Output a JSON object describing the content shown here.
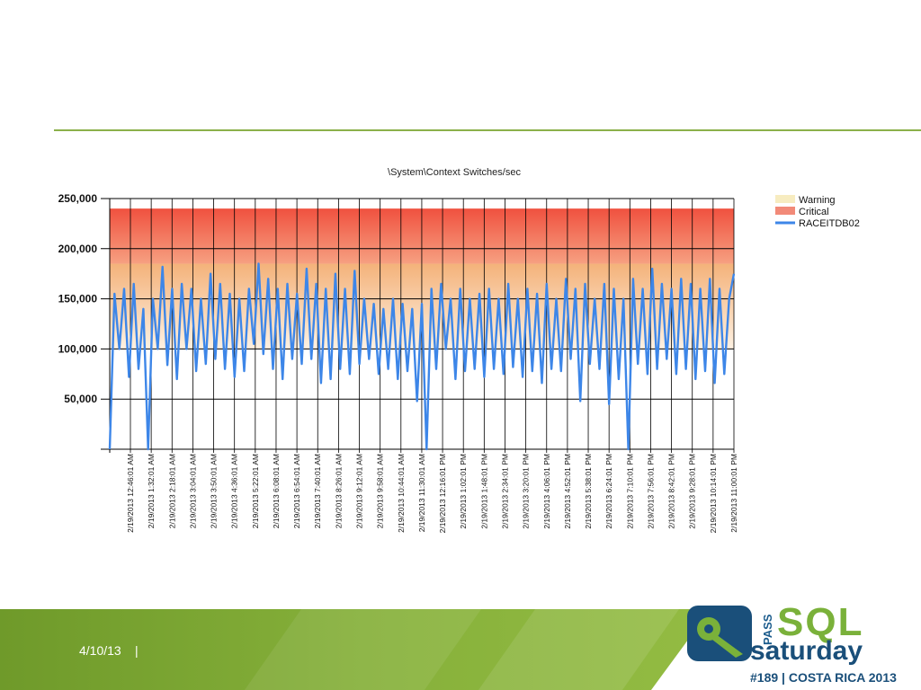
{
  "footer": {
    "date": "4/10/13",
    "separator": "|",
    "logo": {
      "pass": "PASS",
      "sql": "SQL",
      "saturday": "saturday",
      "event": "#189 | COSTA RICA 2013"
    }
  },
  "colors": {
    "rule": "#8bb04a",
    "series": "#3d86e8",
    "critical": "#f05a48",
    "warning": "#f4b47a",
    "footer_green": "#86b03a"
  },
  "chart_data": {
    "type": "line",
    "title": "\\System\\Context Switches/sec",
    "xlabel": "",
    "ylabel": "",
    "ylim": [
      0,
      250000
    ],
    "yticks": [
      50000,
      100000,
      150000,
      200000,
      250000
    ],
    "ytick_labels": [
      "50,000",
      "100,000",
      "150,000",
      "200,000",
      "250,000"
    ],
    "grid": true,
    "legend_position": "right",
    "bands": [
      {
        "name": "Critical",
        "from": 185000,
        "to": 240000
      },
      {
        "name": "Warning",
        "from": 100000,
        "to": 185000
      }
    ],
    "legend": [
      "Warning",
      "Critical",
      "RACEITDB02"
    ],
    "xtick_labels": [
      "2/19/2013 12:46:01 AM",
      "2/19/2013 1:32:01 AM",
      "2/19/2013 2:18:01 AM",
      "2/19/2013 3:04:01 AM",
      "2/19/2013 3:50:01 AM",
      "2/19/2013 4:36:01 AM",
      "2/19/2013 5:22:01 AM",
      "2/19/2013 6:08:01 AM",
      "2/19/2013 6:54:01 AM",
      "2/19/2013 7:40:01 AM",
      "2/19/2013 8:26:01 AM",
      "2/19/2013 9:12:01 AM",
      "2/19/2013 9:58:01 AM",
      "2/19/2013 10:44:01 AM",
      "2/19/2013 11:30:01 AM",
      "2/19/2013 12:16:01 PM",
      "2/19/2013 1:02:01 PM",
      "2/19/2013 1:48:01 PM",
      "2/19/2013 2:34:01 PM",
      "2/19/2013 3:20:01 PM",
      "2/19/2013 4:06:01 PM",
      "2/19/2013 4:52:01 PM",
      "2/19/2013 5:38:01 PM",
      "2/19/2013 6:24:01 PM",
      "2/19/2013 7:10:01 PM",
      "2/19/2013 7:56:01 PM",
      "2/19/2013 8:42:01 PM",
      "2/19/2013 9:28:01 PM",
      "2/19/2013 10:14:01 PM",
      "2/19/2013 11:00:01 PM"
    ],
    "series": [
      {
        "name": "RACEITDB02",
        "values": [
          0,
          155000,
          100000,
          160000,
          72000,
          165000,
          80000,
          140000,
          0,
          150000,
          100000,
          182000,
          84000,
          160000,
          70000,
          165000,
          100000,
          160000,
          78000,
          150000,
          85000,
          175000,
          90000,
          165000,
          80000,
          155000,
          72000,
          150000,
          78000,
          160000,
          105000,
          185000,
          95000,
          170000,
          80000,
          160000,
          70000,
          165000,
          90000,
          155000,
          85000,
          180000,
          90000,
          165000,
          66000,
          160000,
          70000,
          175000,
          80000,
          160000,
          75000,
          178000,
          85000,
          150000,
          90000,
          145000,
          75000,
          140000,
          80000,
          150000,
          70000,
          145000,
          78000,
          140000,
          48000,
          145000,
          0,
          160000,
          80000,
          165000,
          100000,
          150000,
          70000,
          160000,
          78000,
          150000,
          80000,
          155000,
          72000,
          160000,
          80000,
          150000,
          75000,
          165000,
          82000,
          150000,
          72000,
          160000,
          78000,
          155000,
          66000,
          165000,
          80000,
          150000,
          78000,
          170000,
          90000,
          160000,
          48000,
          165000,
          85000,
          150000,
          80000,
          165000,
          45000,
          160000,
          70000,
          150000,
          0,
          170000,
          85000,
          160000,
          75000,
          180000,
          80000,
          165000,
          90000,
          160000,
          75000,
          170000,
          80000,
          165000,
          70000,
          160000,
          78000,
          170000,
          66000,
          160000,
          75000,
          150000,
          175000
        ]
      }
    ]
  }
}
